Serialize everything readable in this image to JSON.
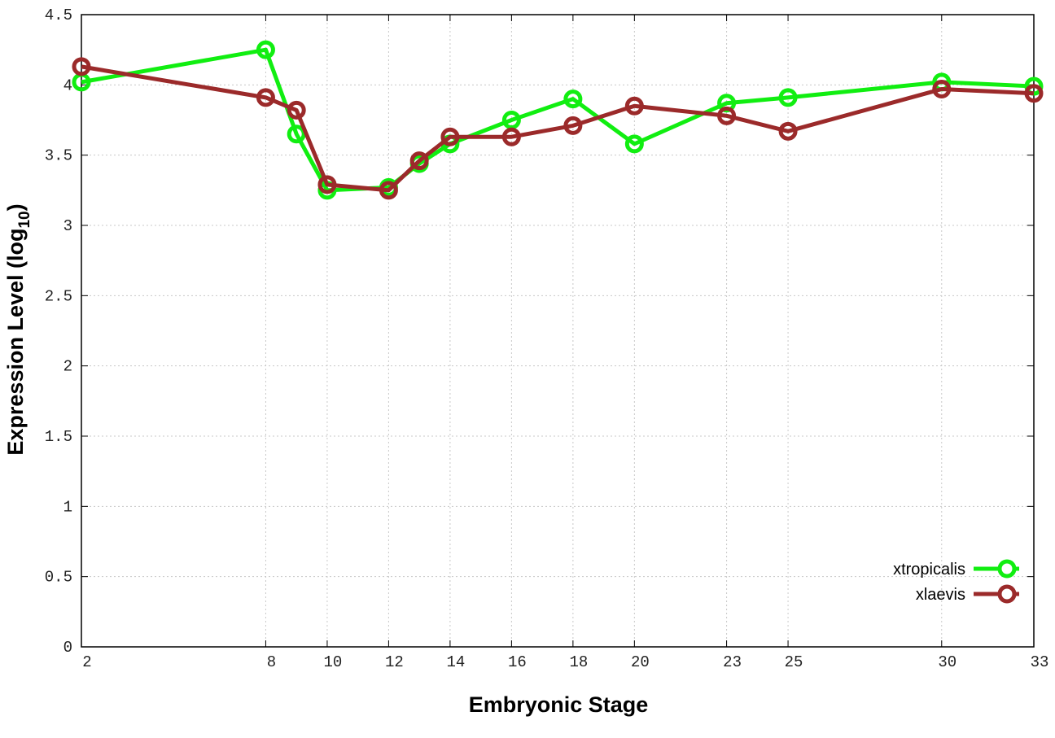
{
  "chart_data": {
    "type": "line",
    "xlabel": "Embryonic Stage",
    "ylabel_prefix": "Expression Level (log",
    "ylabel_sub": "10",
    "ylabel_suffix": ")",
    "xlim": [
      2,
      33
    ],
    "ylim": [
      0,
      4.5
    ],
    "x_ticks": [
      2,
      8,
      10,
      12,
      14,
      16,
      18,
      20,
      23,
      25,
      30,
      33
    ],
    "y_ticks": [
      "0",
      "0.5",
      "1",
      "1.5",
      "2",
      "2.5",
      "3",
      "3.5",
      "4",
      "4.5"
    ],
    "grid": true,
    "legend_position": "bottom-right",
    "x": [
      2,
      8,
      9,
      10,
      12,
      13,
      14,
      16,
      18,
      20,
      23,
      25,
      30,
      33
    ],
    "series": [
      {
        "name": "xtropicalis",
        "color": "#11ee11",
        "values": [
          4.02,
          4.25,
          3.65,
          3.25,
          3.27,
          3.44,
          3.58,
          3.75,
          3.9,
          3.58,
          3.87,
          3.91,
          4.02,
          3.99
        ]
      },
      {
        "name": "xlaevis",
        "color": "#9b2a2a",
        "values": [
          4.13,
          3.91,
          3.82,
          3.29,
          3.25,
          3.46,
          3.63,
          3.63,
          3.71,
          3.85,
          3.78,
          3.67,
          3.97,
          3.94
        ]
      }
    ]
  }
}
